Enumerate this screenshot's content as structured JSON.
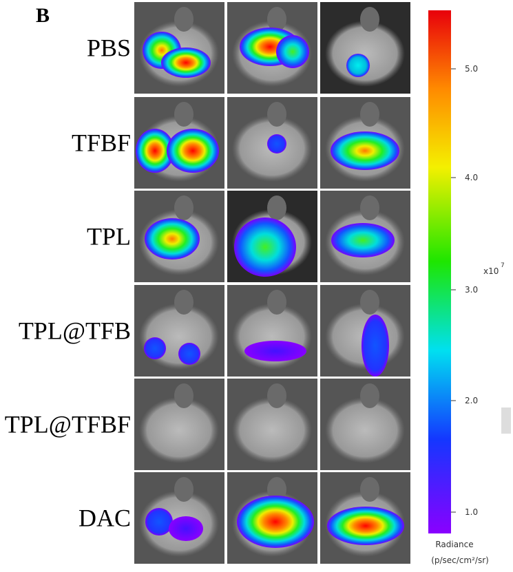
{
  "panel_label": "B",
  "rows": [
    "PBS",
    "TFBF",
    "TPL",
    "TPL@TFB",
    "TPL@TFBF",
    "DAC"
  ],
  "colorbar": {
    "ticks": [
      "5.0",
      "4.0",
      "3.0",
      "2.0",
      "1.0"
    ],
    "multiplier": "x10",
    "exponent": "7",
    "title": "Radiance",
    "unit": "(p/sec/cm²/sr)"
  }
}
